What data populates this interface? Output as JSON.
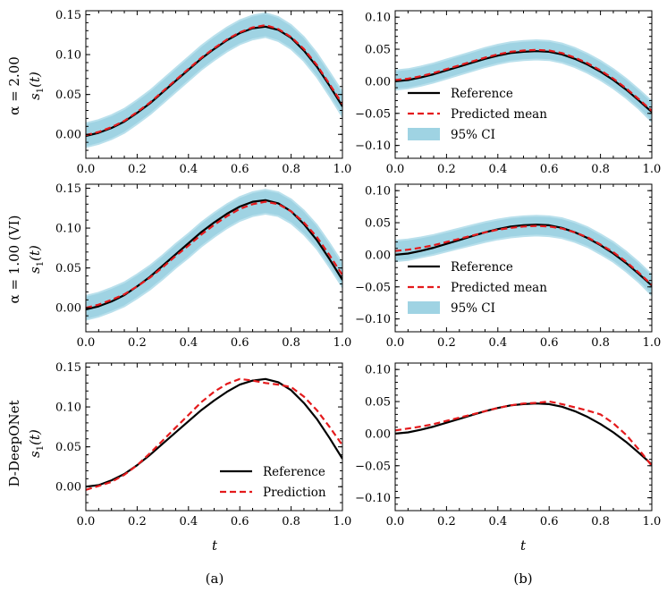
{
  "colors": {
    "reference": "#000000",
    "prediction": "#e41a1c",
    "ci": "#9fd3e3"
  },
  "row_labels": [
    "α = 2.00",
    "α = 1.00 (VI)",
    "D-DeepONet"
  ],
  "ylabel_italic": "s",
  "ylabel_sub": "1",
  "ylabel_arg": "(t)",
  "xlabel": "t",
  "panel_labels": [
    "(a)",
    "(b)"
  ],
  "legend_full": {
    "reference": "Reference",
    "predicted": "Predicted mean",
    "ci": "95% CI"
  },
  "legend_simple": {
    "reference": "Reference",
    "predicted": "Prediction"
  },
  "chart_data": [
    {
      "type": "line",
      "row": 0,
      "col": 0,
      "legend": null,
      "xlim": [
        0,
        1
      ],
      "ylim": [
        -0.03,
        0.155
      ],
      "xticks": [
        0.0,
        0.2,
        0.4,
        0.6,
        0.8,
        1.0
      ],
      "xtick_labels": [
        "0.0",
        "0.2",
        "0.4",
        "0.6",
        "0.8",
        "1.0"
      ],
      "yticks": [
        0.0,
        0.05,
        0.1,
        0.15
      ],
      "ytick_labels": [
        "0.00",
        "0.05",
        "0.10",
        "0.15"
      ],
      "x": [
        0,
        0.05,
        0.1,
        0.15,
        0.2,
        0.25,
        0.3,
        0.35,
        0.4,
        0.45,
        0.5,
        0.55,
        0.6,
        0.65,
        0.7,
        0.75,
        0.8,
        0.85,
        0.9,
        0.95,
        1.0
      ],
      "series": [
        {
          "name": "Reference",
          "values": [
            -0.002,
            0.002,
            0.008,
            0.016,
            0.027,
            0.039,
            0.053,
            0.067,
            0.081,
            0.095,
            0.107,
            0.118,
            0.127,
            0.133,
            0.135,
            0.131,
            0.121,
            0.105,
            0.085,
            0.061,
            0.035
          ]
        },
        {
          "name": "Predicted mean",
          "values": [
            -0.001,
            0.003,
            0.009,
            0.017,
            0.028,
            0.04,
            0.054,
            0.068,
            0.082,
            0.096,
            0.108,
            0.119,
            0.128,
            0.134,
            0.137,
            0.132,
            0.122,
            0.107,
            0.087,
            0.063,
            0.038
          ]
        }
      ],
      "ci": {
        "lower": [
          -0.016,
          -0.012,
          -0.006,
          0.002,
          0.013,
          0.025,
          0.039,
          0.053,
          0.067,
          0.081,
          0.093,
          0.104,
          0.113,
          0.119,
          0.122,
          0.117,
          0.107,
          0.092,
          0.072,
          0.048,
          0.022
        ],
        "upper": [
          0.014,
          0.018,
          0.024,
          0.032,
          0.043,
          0.055,
          0.069,
          0.083,
          0.097,
          0.111,
          0.123,
          0.134,
          0.143,
          0.149,
          0.152,
          0.147,
          0.137,
          0.122,
          0.102,
          0.078,
          0.053
        ]
      }
    },
    {
      "type": "line",
      "row": 0,
      "col": 1,
      "legend": "full",
      "xlim": [
        0,
        1
      ],
      "ylim": [
        -0.12,
        0.11
      ],
      "xticks": [
        0.0,
        0.2,
        0.4,
        0.6,
        0.8,
        1.0
      ],
      "xtick_labels": [
        "0.0",
        "0.2",
        "0.4",
        "0.6",
        "0.8",
        "1.0"
      ],
      "yticks": [
        -0.1,
        -0.05,
        0.0,
        0.05,
        0.1
      ],
      "ytick_labels": [
        "−0.10",
        "−0.05",
        "0.00",
        "0.05",
        "0.10"
      ],
      "x": [
        0,
        0.05,
        0.1,
        0.15,
        0.2,
        0.25,
        0.3,
        0.35,
        0.4,
        0.45,
        0.5,
        0.55,
        0.6,
        0.65,
        0.7,
        0.75,
        0.8,
        0.85,
        0.9,
        0.95,
        1.0
      ],
      "series": [
        {
          "name": "Reference",
          "values": [
            0.0,
            0.002,
            0.006,
            0.011,
            0.017,
            0.023,
            0.029,
            0.035,
            0.04,
            0.044,
            0.046,
            0.047,
            0.046,
            0.042,
            0.035,
            0.026,
            0.015,
            0.002,
            -0.013,
            -0.03,
            -0.048
          ]
        },
        {
          "name": "Predicted mean",
          "values": [
            0.002,
            0.004,
            0.008,
            0.013,
            0.019,
            0.025,
            0.031,
            0.037,
            0.042,
            0.046,
            0.048,
            0.049,
            0.048,
            0.044,
            0.037,
            0.028,
            0.017,
            0.004,
            -0.011,
            -0.028,
            -0.046
          ]
        }
      ],
      "ci": {
        "lower": [
          -0.013,
          -0.011,
          -0.007,
          -0.002,
          0.004,
          0.01,
          0.016,
          0.022,
          0.027,
          0.031,
          0.033,
          0.034,
          0.033,
          0.029,
          0.022,
          0.013,
          0.002,
          -0.011,
          -0.026,
          -0.043,
          -0.063
        ],
        "upper": [
          0.017,
          0.019,
          0.023,
          0.028,
          0.034,
          0.04,
          0.046,
          0.052,
          0.057,
          0.061,
          0.063,
          0.064,
          0.063,
          0.059,
          0.052,
          0.043,
          0.032,
          0.019,
          0.004,
          -0.013,
          -0.031
        ]
      }
    },
    {
      "type": "line",
      "row": 1,
      "col": 0,
      "legend": null,
      "xlim": [
        0,
        1
      ],
      "ylim": [
        -0.03,
        0.155
      ],
      "xticks": [
        0.0,
        0.2,
        0.4,
        0.6,
        0.8,
        1.0
      ],
      "xtick_labels": [
        "0.0",
        "0.2",
        "0.4",
        "0.6",
        "0.8",
        "1.0"
      ],
      "yticks": [
        0.0,
        0.05,
        0.1,
        0.15
      ],
      "ytick_labels": [
        "0.00",
        "0.05",
        "0.10",
        "0.15"
      ],
      "x": [
        0,
        0.05,
        0.1,
        0.15,
        0.2,
        0.25,
        0.3,
        0.35,
        0.4,
        0.45,
        0.5,
        0.55,
        0.6,
        0.65,
        0.7,
        0.75,
        0.8,
        0.85,
        0.9,
        0.95,
        1.0
      ],
      "series": [
        {
          "name": "Reference",
          "values": [
            -0.002,
            0.002,
            0.008,
            0.016,
            0.027,
            0.039,
            0.053,
            0.067,
            0.081,
            0.095,
            0.107,
            0.118,
            0.127,
            0.133,
            0.135,
            0.131,
            0.121,
            0.105,
            0.085,
            0.061,
            0.035
          ]
        },
        {
          "name": "Predicted mean",
          "values": [
            0.0,
            0.004,
            0.01,
            0.017,
            0.027,
            0.038,
            0.051,
            0.065,
            0.078,
            0.092,
            0.104,
            0.115,
            0.124,
            0.13,
            0.133,
            0.13,
            0.121,
            0.107,
            0.089,
            0.066,
            0.041
          ]
        }
      ],
      "ci": {
        "lower": [
          -0.015,
          -0.011,
          -0.005,
          0.002,
          0.012,
          0.023,
          0.036,
          0.05,
          0.063,
          0.077,
          0.089,
          0.1,
          0.109,
          0.115,
          0.118,
          0.115,
          0.106,
          0.092,
          0.074,
          0.051,
          0.026
        ],
        "upper": [
          0.015,
          0.019,
          0.025,
          0.032,
          0.042,
          0.053,
          0.066,
          0.08,
          0.093,
          0.107,
          0.119,
          0.13,
          0.139,
          0.145,
          0.148,
          0.145,
          0.136,
          0.122,
          0.104,
          0.081,
          0.056
        ]
      }
    },
    {
      "type": "line",
      "row": 1,
      "col": 1,
      "legend": "full",
      "xlim": [
        0,
        1
      ],
      "ylim": [
        -0.12,
        0.11
      ],
      "xticks": [
        0.0,
        0.2,
        0.4,
        0.6,
        0.8,
        1.0
      ],
      "xtick_labels": [
        "0.0",
        "0.2",
        "0.4",
        "0.6",
        "0.8",
        "1.0"
      ],
      "yticks": [
        -0.1,
        -0.05,
        0.0,
        0.05,
        0.1
      ],
      "ytick_labels": [
        "−0.10",
        "−0.05",
        "0.00",
        "0.05",
        "0.10"
      ],
      "x": [
        0,
        0.05,
        0.1,
        0.15,
        0.2,
        0.25,
        0.3,
        0.35,
        0.4,
        0.45,
        0.5,
        0.55,
        0.6,
        0.65,
        0.7,
        0.75,
        0.8,
        0.85,
        0.9,
        0.95,
        1.0
      ],
      "series": [
        {
          "name": "Reference",
          "values": [
            0.0,
            0.002,
            0.006,
            0.011,
            0.017,
            0.023,
            0.029,
            0.035,
            0.04,
            0.044,
            0.046,
            0.047,
            0.046,
            0.042,
            0.035,
            0.026,
            0.015,
            0.002,
            -0.013,
            -0.03,
            -0.048
          ]
        },
        {
          "name": "Predicted mean",
          "values": [
            0.006,
            0.008,
            0.011,
            0.015,
            0.02,
            0.025,
            0.03,
            0.035,
            0.039,
            0.042,
            0.044,
            0.045,
            0.044,
            0.041,
            0.035,
            0.027,
            0.016,
            0.004,
            -0.011,
            -0.028,
            -0.047
          ]
        }
      ],
      "ci": {
        "lower": [
          -0.01,
          -0.008,
          -0.004,
          0.0,
          0.005,
          0.01,
          0.015,
          0.02,
          0.024,
          0.027,
          0.029,
          0.03,
          0.029,
          0.026,
          0.02,
          0.012,
          0.001,
          -0.011,
          -0.026,
          -0.043,
          -0.063
        ],
        "upper": [
          0.022,
          0.024,
          0.027,
          0.031,
          0.036,
          0.041,
          0.046,
          0.051,
          0.055,
          0.058,
          0.06,
          0.061,
          0.06,
          0.057,
          0.051,
          0.043,
          0.032,
          0.02,
          0.005,
          -0.012,
          -0.031
        ]
      }
    },
    {
      "type": "line",
      "row": 2,
      "col": 0,
      "legend": "simple",
      "xlim": [
        0,
        1
      ],
      "ylim": [
        -0.03,
        0.155
      ],
      "xticks": [
        0.0,
        0.2,
        0.4,
        0.6,
        0.8,
        1.0
      ],
      "xtick_labels": [
        "0.0",
        "0.2",
        "0.4",
        "0.6",
        "0.8",
        "1.0"
      ],
      "yticks": [
        0.0,
        0.05,
        0.1,
        0.15
      ],
      "ytick_labels": [
        "0.00",
        "0.05",
        "0.10",
        "0.15"
      ],
      "x": [
        0,
        0.05,
        0.1,
        0.15,
        0.2,
        0.25,
        0.3,
        0.35,
        0.4,
        0.45,
        0.5,
        0.55,
        0.6,
        0.65,
        0.7,
        0.75,
        0.8,
        0.85,
        0.9,
        0.95,
        1.0
      ],
      "series": [
        {
          "name": "Reference",
          "values": [
            0.0,
            0.002,
            0.008,
            0.016,
            0.027,
            0.04,
            0.054,
            0.068,
            0.082,
            0.096,
            0.108,
            0.119,
            0.128,
            0.133,
            0.135,
            0.131,
            0.121,
            0.105,
            0.085,
            0.061,
            0.035
          ]
        },
        {
          "name": "Prediction",
          "values": [
            -0.004,
            0.001,
            0.006,
            0.015,
            0.027,
            0.042,
            0.058,
            0.074,
            0.09,
            0.106,
            0.119,
            0.129,
            0.135,
            0.133,
            0.13,
            0.128,
            0.125,
            0.113,
            0.096,
            0.075,
            0.052
          ]
        }
      ]
    },
    {
      "type": "line",
      "row": 2,
      "col": 1,
      "legend": null,
      "xlim": [
        0,
        1
      ],
      "ylim": [
        -0.12,
        0.11
      ],
      "xticks": [
        0.0,
        0.2,
        0.4,
        0.6,
        0.8,
        1.0
      ],
      "xtick_labels": [
        "0.0",
        "0.2",
        "0.4",
        "0.6",
        "0.8",
        "1.0"
      ],
      "yticks": [
        -0.1,
        -0.05,
        0.0,
        0.05,
        0.1
      ],
      "ytick_labels": [
        "−0.10",
        "−0.05",
        "0.00",
        "0.05",
        "0.10"
      ],
      "x": [
        0,
        0.05,
        0.1,
        0.15,
        0.2,
        0.25,
        0.3,
        0.35,
        0.4,
        0.45,
        0.5,
        0.55,
        0.6,
        0.65,
        0.7,
        0.75,
        0.8,
        0.85,
        0.9,
        0.95,
        1.0
      ],
      "series": [
        {
          "name": "Reference",
          "values": [
            0.0,
            0.002,
            0.006,
            0.011,
            0.017,
            0.023,
            0.029,
            0.035,
            0.04,
            0.044,
            0.046,
            0.047,
            0.046,
            0.042,
            0.035,
            0.026,
            0.015,
            0.002,
            -0.013,
            -0.03,
            -0.048
          ]
        },
        {
          "name": "Prediction",
          "values": [
            0.005,
            0.008,
            0.011,
            0.015,
            0.02,
            0.025,
            0.03,
            0.035,
            0.04,
            0.044,
            0.047,
            0.048,
            0.05,
            0.046,
            0.041,
            0.036,
            0.03,
            0.016,
            -0.002,
            -0.025,
            -0.05
          ]
        }
      ]
    }
  ]
}
